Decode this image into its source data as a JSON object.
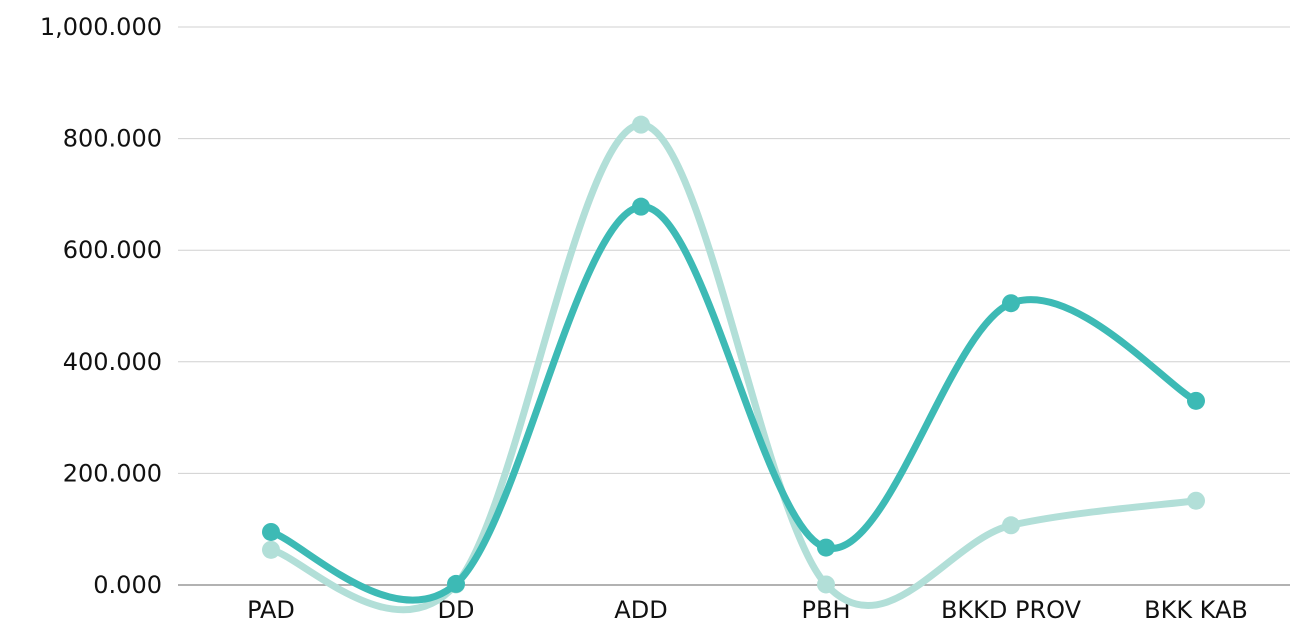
{
  "chart_data": {
    "type": "line",
    "categories": [
      "PAD",
      "DD",
      "ADD",
      "PBH",
      "BKKD PROV",
      "BKK KAB"
    ],
    "series": [
      {
        "values": [
          95,
          2,
          678,
          67,
          505,
          330
        ],
        "color": "#3dbab5"
      },
      {
        "values": [
          63,
          1,
          825,
          1,
          107,
          151
        ],
        "color": "#b2dfd8"
      }
    ],
    "ylim": [
      0,
      1000
    ],
    "y_tick_values": [
      0,
      200,
      400,
      600,
      800,
      1000
    ],
    "y_tick_labels": [
      "0.000",
      "200.000",
      "400.000",
      "600.000",
      "800.000",
      "1,000.000"
    ],
    "grid": true,
    "smooth": true,
    "gridline_color": "#d0d0d0",
    "axis_color": "#999999"
  }
}
